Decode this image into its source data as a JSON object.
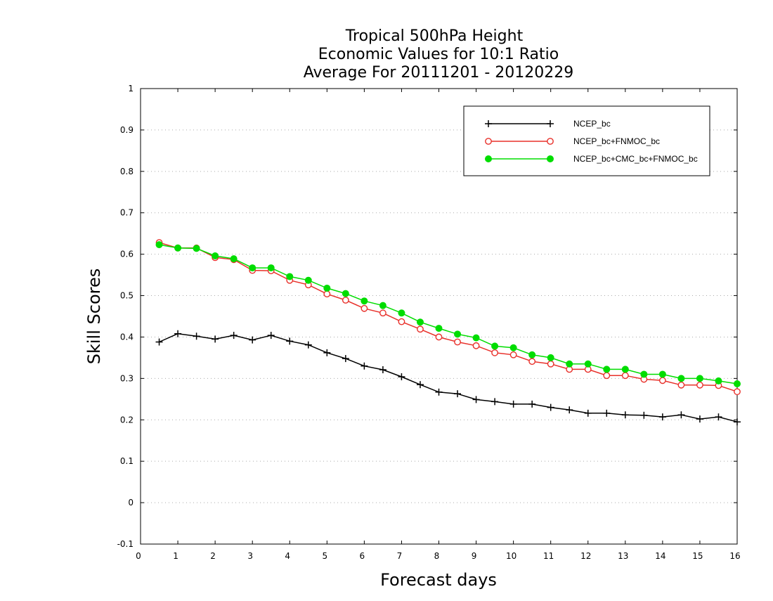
{
  "chart_data": {
    "type": "line",
    "title": [
      "Tropical 500hPa Height",
      "Economic Values for 10:1 Ratio",
      "Average For 20111201 - 20120229"
    ],
    "xlabel": "Forecast days",
    "ylabel": "Skill Scores",
    "xlim": [
      0,
      16
    ],
    "ylim": [
      -0.1,
      1
    ],
    "xticks": [
      "0",
      "1",
      "2",
      "3",
      "4",
      "5",
      "6",
      "7",
      "8",
      "9",
      "10",
      "11",
      "12",
      "13",
      "14",
      "15",
      "16"
    ],
    "yticks": [
      "-0.1",
      "0",
      "0.1",
      "0.2",
      "0.3",
      "0.4",
      "0.5",
      "0.6",
      "0.7",
      "0.8",
      "0.9",
      "1"
    ],
    "grid": "horizontal dotted",
    "legend_position": "top-right",
    "x": [
      0.5,
      1,
      1.5,
      2,
      2.5,
      3,
      3.5,
      4,
      4.5,
      5,
      5.5,
      6,
      6.5,
      7,
      7.5,
      8,
      8.5,
      9,
      9.5,
      10,
      10.5,
      11,
      11.5,
      12,
      12.5,
      13,
      13.5,
      14,
      14.5,
      15,
      15.5,
      16
    ],
    "series": [
      {
        "name": "NCEP_bc",
        "color": "#000000",
        "marker": "plus",
        "values": [
          0.388,
          0.408,
          0.402,
          0.395,
          0.404,
          0.393,
          0.404,
          0.39,
          0.381,
          0.362,
          0.348,
          0.33,
          0.321,
          0.304,
          0.285,
          0.267,
          0.263,
          0.249,
          0.244,
          0.238,
          0.238,
          0.23,
          0.224,
          0.216,
          0.216,
          0.212,
          0.211,
          0.207,
          0.212,
          0.202,
          0.207,
          0.195
        ]
      },
      {
        "name": "NCEP_bc+FNMOC_bc",
        "color": "#e8302a",
        "marker": "open-circle",
        "values": [
          0.628,
          0.615,
          0.615,
          0.592,
          0.587,
          0.561,
          0.56,
          0.537,
          0.526,
          0.504,
          0.489,
          0.469,
          0.458,
          0.437,
          0.419,
          0.4,
          0.388,
          0.379,
          0.362,
          0.357,
          0.341,
          0.335,
          0.322,
          0.322,
          0.307,
          0.307,
          0.298,
          0.295,
          0.284,
          0.284,
          0.283,
          0.268
        ]
      },
      {
        "name": "NCEP_bc+CMC_bc+FNMOC_bc",
        "color": "#00dd00",
        "marker": "filled-circle",
        "values": [
          0.623,
          0.615,
          0.614,
          0.596,
          0.589,
          0.567,
          0.567,
          0.546,
          0.537,
          0.518,
          0.505,
          0.487,
          0.476,
          0.458,
          0.436,
          0.421,
          0.407,
          0.398,
          0.378,
          0.374,
          0.357,
          0.35,
          0.335,
          0.335,
          0.322,
          0.322,
          0.31,
          0.31,
          0.3,
          0.3,
          0.294,
          0.287
        ]
      }
    ]
  }
}
